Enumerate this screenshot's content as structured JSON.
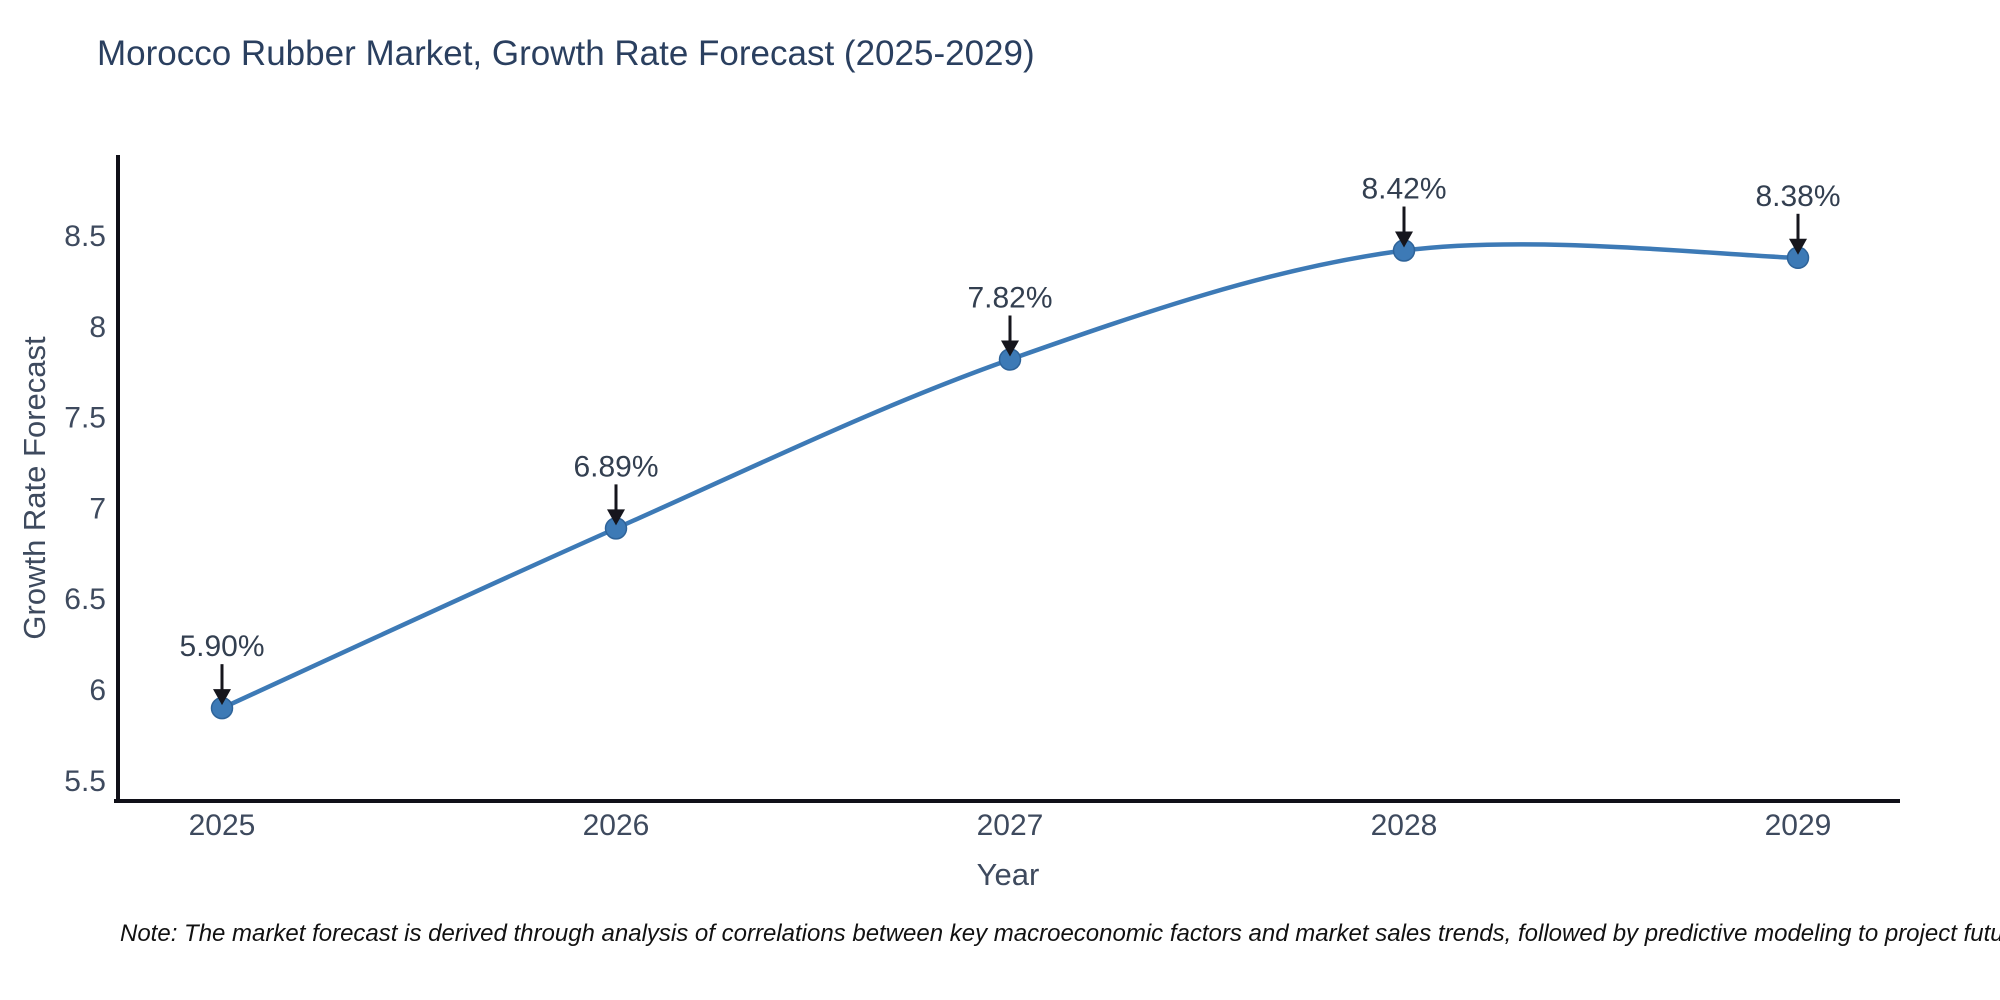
{
  "title": "Morocco Rubber Market, Growth Rate Forecast (2025-2029)",
  "note": "Note: The market forecast is derived through analysis of correlations between key macroeconomic factors and market sales trends, followed by predictive modeling to project future sales",
  "chart_data": {
    "type": "line",
    "title": "Morocco Rubber Market, Growth Rate Forecast (2025-2029)",
    "xlabel": "Year",
    "ylabel": "Growth Rate Forecast",
    "x": [
      2025,
      2026,
      2027,
      2028,
      2029
    ],
    "series": [
      {
        "name": "Growth Rate Forecast",
        "values": [
          5.9,
          6.89,
          7.82,
          8.42,
          8.38
        ]
      }
    ],
    "point_labels": [
      "5.90%",
      "6.89%",
      "7.82%",
      "8.42%",
      "8.38%"
    ],
    "xticks": [
      "2025",
      "2026",
      "2027",
      "2028",
      "2029"
    ],
    "yticks": [
      "5.5",
      "6",
      "6.5",
      "7",
      "7.5",
      "8",
      "8.5"
    ],
    "ylim": [
      5.39,
      8.94
    ],
    "grid": false,
    "legend_position": "none",
    "line_shape": "spline",
    "colors": {
      "line": "#3d7ab6",
      "marker_fill": "#3d7ab6",
      "marker_edge": "#2e6399",
      "annotation_text": "#333f50",
      "annotation_arrow": "#16161d",
      "title_text": "#2a3f5f",
      "axis_text": "#3e4a5e",
      "spine": "#101018",
      "note_text": "#111111",
      "background": "#ffffff"
    }
  }
}
